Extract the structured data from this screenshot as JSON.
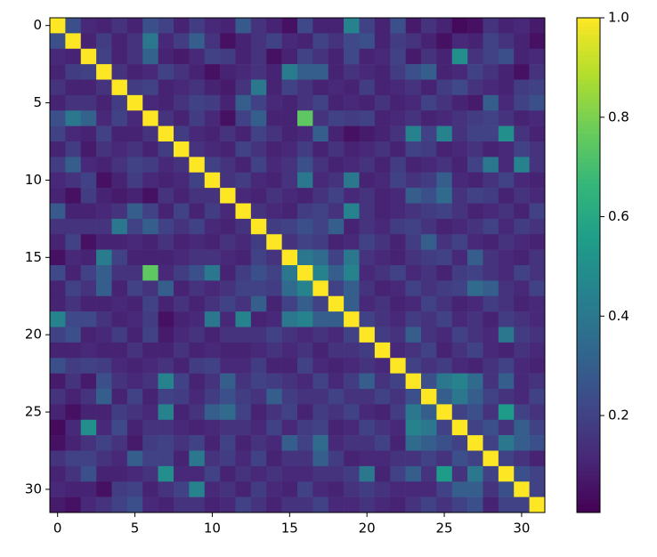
{
  "chart_data": {
    "type": "heatmap",
    "cmap": "viridis",
    "xlim": [
      -0.5,
      31.5
    ],
    "ylim": [
      31.5,
      -0.5
    ],
    "xticks": [
      0,
      5,
      10,
      15,
      20,
      25,
      30
    ],
    "yticks": [
      0,
      5,
      10,
      15,
      20,
      25,
      30
    ],
    "clim": [
      0.005,
      1
    ],
    "cticks": [
      0.2,
      0.4,
      0.6,
      0.8,
      {
        "value": 1,
        "label": "1.0"
      }
    ],
    "values": [
      [
        1,
        0.25,
        0.12,
        0.1,
        0.15,
        0.1,
        0.25,
        0.2,
        0.1,
        0.18,
        0.12,
        0.1,
        0.28,
        0.15,
        0.1,
        0.05,
        0.22,
        0.1,
        0.1,
        0.45,
        0.2,
        0.1,
        0.25,
        0.08,
        0.15,
        0.1,
        0.03,
        0.05,
        0.15,
        0.1,
        0.12,
        0.08
      ],
      [
        0.25,
        1,
        0.1,
        0.18,
        0.1,
        0.15,
        0.4,
        0.12,
        0.18,
        0.3,
        0.15,
        0.05,
        0.1,
        0.15,
        0.2,
        0.12,
        0.1,
        0.2,
        0.15,
        0.22,
        0.25,
        0.1,
        0.18,
        0.15,
        0.1,
        0.05,
        0.12,
        0.1,
        0.2,
        0.15,
        0.1,
        0.05
      ],
      [
        0.12,
        0.1,
        1,
        0.2,
        0.1,
        0.15,
        0.32,
        0.1,
        0.08,
        0.12,
        0.2,
        0.18,
        0.1,
        0.15,
        0.05,
        0.1,
        0.2,
        0.15,
        0.1,
        0.22,
        0.1,
        0.12,
        0.2,
        0.08,
        0.15,
        0.1,
        0.5,
        0.15,
        0.2,
        0.25,
        0.1,
        0.12
      ],
      [
        0.1,
        0.18,
        0.2,
        1,
        0.15,
        0.1,
        0.12,
        0.2,
        0.15,
        0.1,
        0.05,
        0.1,
        0.12,
        0.15,
        0.1,
        0.42,
        0.3,
        0.3,
        0.1,
        0.15,
        0.12,
        0.1,
        0.18,
        0.25,
        0.3,
        0.1,
        0.12,
        0.2,
        0.15,
        0.1,
        0.05,
        0.15
      ],
      [
        0.15,
        0.1,
        0.1,
        0.15,
        1,
        0.18,
        0.2,
        0.1,
        0.12,
        0.15,
        0.1,
        0.08,
        0.15,
        0.4,
        0.1,
        0.2,
        0.15,
        0.1,
        0.12,
        0.1,
        0.18,
        0.1,
        0.12,
        0.15,
        0.1,
        0.18,
        0.22,
        0.15,
        0.12,
        0.1,
        0.18,
        0.2
      ],
      [
        0.1,
        0.15,
        0.15,
        0.1,
        0.18,
        1,
        0.12,
        0.1,
        0.15,
        0.2,
        0.18,
        0.1,
        0.3,
        0.2,
        0.12,
        0.1,
        0.15,
        0.2,
        0.1,
        0.12,
        0.1,
        0.15,
        0.1,
        0.12,
        0.2,
        0.15,
        0.1,
        0.08,
        0.3,
        0.12,
        0.2,
        0.25
      ],
      [
        0.25,
        0.4,
        0.32,
        0.12,
        0.2,
        0.12,
        1,
        0.15,
        0.1,
        0.18,
        0.12,
        0.05,
        0.2,
        0.3,
        0.1,
        0.1,
        0.75,
        0.15,
        0.2,
        0.18,
        0.2,
        0.1,
        0.12,
        0.15,
        0.1,
        0.12,
        0.15,
        0.18,
        0.2,
        0.15,
        0.1,
        0.12
      ],
      [
        0.2,
        0.12,
        0.1,
        0.2,
        0.1,
        0.1,
        0.15,
        1,
        0.18,
        0.12,
        0.1,
        0.15,
        0.1,
        0.2,
        0.15,
        0.1,
        0.12,
        0.3,
        0.1,
        0.05,
        0.08,
        0.1,
        0.15,
        0.45,
        0.2,
        0.45,
        0.15,
        0.2,
        0.2,
        0.5,
        0.15,
        0.1
      ],
      [
        0.1,
        0.18,
        0.08,
        0.15,
        0.12,
        0.15,
        0.1,
        0.18,
        1,
        0.15,
        0.12,
        0.1,
        0.2,
        0.15,
        0.1,
        0.12,
        0.18,
        0.1,
        0.15,
        0.1,
        0.12,
        0.15,
        0.1,
        0.2,
        0.18,
        0.1,
        0.12,
        0.15,
        0.1,
        0.12,
        0.2,
        0.15
      ],
      [
        0.18,
        0.3,
        0.12,
        0.1,
        0.15,
        0.2,
        0.18,
        0.12,
        0.15,
        1,
        0.2,
        0.15,
        0.1,
        0.2,
        0.12,
        0.15,
        0.25,
        0.15,
        0.1,
        0.12,
        0.15,
        0.1,
        0.18,
        0.1,
        0.12,
        0.15,
        0.1,
        0.2,
        0.4,
        0.12,
        0.45,
        0.15
      ],
      [
        0.12,
        0.15,
        0.2,
        0.05,
        0.1,
        0.18,
        0.12,
        0.1,
        0.12,
        0.2,
        1,
        0.15,
        0.18,
        0.12,
        0.1,
        0.15,
        0.4,
        0.12,
        0.15,
        0.4,
        0.1,
        0.12,
        0.2,
        0.15,
        0.18,
        0.3,
        0.12,
        0.1,
        0.15,
        0.2,
        0.12,
        0.1
      ],
      [
        0.1,
        0.05,
        0.18,
        0.1,
        0.08,
        0.1,
        0.05,
        0.15,
        0.1,
        0.15,
        0.15,
        1,
        0.12,
        0.1,
        0.15,
        0.12,
        0.1,
        0.15,
        0.2,
        0.12,
        0.15,
        0.1,
        0.12,
        0.3,
        0.25,
        0.35,
        0.15,
        0.2,
        0.18,
        0.1,
        0.15,
        0.12
      ],
      [
        0.28,
        0.1,
        0.1,
        0.12,
        0.15,
        0.3,
        0.2,
        0.1,
        0.2,
        0.1,
        0.18,
        0.12,
        1,
        0.15,
        0.12,
        0.1,
        0.18,
        0.2,
        0.15,
        0.45,
        0.15,
        0.1,
        0.12,
        0.15,
        0.18,
        0.2,
        0.15,
        0.1,
        0.12,
        0.15,
        0.1,
        0.2
      ],
      [
        0.15,
        0.15,
        0.15,
        0.15,
        0.4,
        0.2,
        0.3,
        0.2,
        0.15,
        0.2,
        0.12,
        0.1,
        0.15,
        1,
        0.18,
        0.2,
        0.25,
        0.2,
        0.3,
        0.1,
        0.15,
        0.12,
        0.18,
        0.2,
        0.15,
        0.1,
        0.12,
        0.15,
        0.2,
        0.12,
        0.18,
        0.15
      ],
      [
        0.1,
        0.2,
        0.05,
        0.1,
        0.1,
        0.12,
        0.1,
        0.15,
        0.1,
        0.12,
        0.1,
        0.15,
        0.12,
        0.18,
        1,
        0.15,
        0.2,
        0.18,
        0.1,
        0.12,
        0.2,
        0.15,
        0.1,
        0.18,
        0.3,
        0.15,
        0.2,
        0.12,
        0.1,
        0.15,
        0.12,
        0.1
      ],
      [
        0.05,
        0.12,
        0.1,
        0.42,
        0.2,
        0.1,
        0.1,
        0.1,
        0.12,
        0.15,
        0.15,
        0.12,
        0.1,
        0.2,
        0.15,
        1,
        0.4,
        0.35,
        0.2,
        0.4,
        0.15,
        0.12,
        0.1,
        0.15,
        0.18,
        0.2,
        0.12,
        0.3,
        0.15,
        0.12,
        0.1,
        0.15
      ],
      [
        0.22,
        0.1,
        0.2,
        0.3,
        0.15,
        0.15,
        0.75,
        0.12,
        0.18,
        0.25,
        0.4,
        0.1,
        0.18,
        0.25,
        0.2,
        0.4,
        1,
        0.45,
        0.3,
        0.45,
        0.12,
        0.15,
        0.2,
        0.12,
        0.15,
        0.1,
        0.18,
        0.2,
        0.15,
        0.12,
        0.2,
        0.15
      ],
      [
        0.1,
        0.2,
        0.15,
        0.3,
        0.1,
        0.2,
        0.15,
        0.3,
        0.1,
        0.15,
        0.12,
        0.15,
        0.2,
        0.2,
        0.18,
        0.35,
        0.45,
        1,
        0.2,
        0.3,
        0.15,
        0.1,
        0.12,
        0.2,
        0.15,
        0.18,
        0.2,
        0.35,
        0.3,
        0.15,
        0.12,
        0.2
      ],
      [
        0.1,
        0.15,
        0.1,
        0.1,
        0.12,
        0.1,
        0.2,
        0.1,
        0.15,
        0.1,
        0.15,
        0.2,
        0.15,
        0.3,
        0.1,
        0.2,
        0.3,
        0.2,
        1,
        0.3,
        0.12,
        0.15,
        0.1,
        0.12,
        0.2,
        0.15,
        0.1,
        0.12,
        0.18,
        0.15,
        0.1,
        0.12
      ],
      [
        0.45,
        0.22,
        0.22,
        0.15,
        0.1,
        0.12,
        0.18,
        0.05,
        0.1,
        0.12,
        0.4,
        0.12,
        0.45,
        0.1,
        0.12,
        0.4,
        0.45,
        0.3,
        0.3,
        1,
        0.2,
        0.15,
        0.12,
        0.18,
        0.15,
        0.2,
        0.12,
        0.15,
        0.1,
        0.18,
        0.15,
        0.12
      ],
      [
        0.2,
        0.25,
        0.1,
        0.12,
        0.18,
        0.1,
        0.2,
        0.08,
        0.12,
        0.15,
        0.1,
        0.15,
        0.15,
        0.15,
        0.2,
        0.15,
        0.12,
        0.15,
        0.12,
        0.2,
        1,
        0.18,
        0.15,
        0.3,
        0.15,
        0.12,
        0.2,
        0.15,
        0.12,
        0.4,
        0.18,
        0.15
      ],
      [
        0.1,
        0.1,
        0.12,
        0.1,
        0.1,
        0.15,
        0.1,
        0.1,
        0.15,
        0.1,
        0.12,
        0.1,
        0.1,
        0.12,
        0.15,
        0.12,
        0.15,
        0.1,
        0.15,
        0.15,
        0.18,
        1,
        0.12,
        0.15,
        0.2,
        0.1,
        0.15,
        0.2,
        0.12,
        0.1,
        0.15,
        0.12
      ],
      [
        0.25,
        0.18,
        0.2,
        0.18,
        0.12,
        0.1,
        0.12,
        0.15,
        0.1,
        0.18,
        0.2,
        0.12,
        0.12,
        0.18,
        0.1,
        0.1,
        0.2,
        0.12,
        0.1,
        0.12,
        0.15,
        0.12,
        1,
        0.2,
        0.15,
        0.18,
        0.12,
        0.1,
        0.15,
        0.2,
        0.12,
        0.1
      ],
      [
        0.08,
        0.15,
        0.08,
        0.25,
        0.15,
        0.12,
        0.15,
        0.45,
        0.2,
        0.1,
        0.15,
        0.3,
        0.15,
        0.2,
        0.18,
        0.15,
        0.12,
        0.2,
        0.12,
        0.18,
        0.3,
        0.15,
        0.2,
        1,
        0.25,
        0.4,
        0.45,
        0.35,
        0.15,
        0.3,
        0.12,
        0.15
      ],
      [
        0.15,
        0.1,
        0.15,
        0.3,
        0.1,
        0.2,
        0.1,
        0.2,
        0.18,
        0.12,
        0.18,
        0.25,
        0.18,
        0.15,
        0.3,
        0.18,
        0.15,
        0.15,
        0.2,
        0.15,
        0.15,
        0.2,
        0.15,
        0.25,
        1,
        0.3,
        0.4,
        0.3,
        0.2,
        0.15,
        0.12,
        0.2
      ],
      [
        0.1,
        0.05,
        0.1,
        0.1,
        0.18,
        0.15,
        0.12,
        0.45,
        0.1,
        0.15,
        0.3,
        0.35,
        0.2,
        0.1,
        0.15,
        0.2,
        0.1,
        0.18,
        0.15,
        0.2,
        0.12,
        0.1,
        0.18,
        0.4,
        0.3,
        1,
        0.2,
        0.25,
        0.15,
        0.55,
        0.2,
        0.15
      ],
      [
        0.03,
        0.12,
        0.5,
        0.12,
        0.22,
        0.1,
        0.15,
        0.15,
        0.12,
        0.1,
        0.12,
        0.15,
        0.15,
        0.12,
        0.2,
        0.12,
        0.18,
        0.2,
        0.1,
        0.12,
        0.2,
        0.15,
        0.12,
        0.45,
        0.4,
        0.2,
        1,
        0.2,
        0.25,
        0.15,
        0.3,
        0.2
      ],
      [
        0.05,
        0.1,
        0.15,
        0.2,
        0.15,
        0.08,
        0.18,
        0.2,
        0.15,
        0.2,
        0.1,
        0.2,
        0.1,
        0.15,
        0.12,
        0.3,
        0.2,
        0.35,
        0.12,
        0.15,
        0.15,
        0.2,
        0.1,
        0.35,
        0.3,
        0.25,
        0.2,
        1,
        0.2,
        0.4,
        0.3,
        0.25
      ],
      [
        0.15,
        0.2,
        0.2,
        0.15,
        0.12,
        0.3,
        0.2,
        0.2,
        0.1,
        0.4,
        0.15,
        0.18,
        0.12,
        0.2,
        0.1,
        0.15,
        0.15,
        0.3,
        0.18,
        0.1,
        0.12,
        0.12,
        0.15,
        0.15,
        0.2,
        0.15,
        0.25,
        0.2,
        1,
        0.2,
        0.15,
        0.1
      ],
      [
        0.1,
        0.15,
        0.25,
        0.1,
        0.1,
        0.12,
        0.15,
        0.5,
        0.12,
        0.12,
        0.2,
        0.1,
        0.15,
        0.12,
        0.15,
        0.12,
        0.12,
        0.15,
        0.15,
        0.18,
        0.4,
        0.1,
        0.2,
        0.3,
        0.15,
        0.55,
        0.15,
        0.4,
        0.2,
        1,
        0.25,
        0.2
      ],
      [
        0.12,
        0.1,
        0.1,
        0.05,
        0.18,
        0.2,
        0.1,
        0.15,
        0.2,
        0.45,
        0.12,
        0.15,
        0.1,
        0.18,
        0.12,
        0.1,
        0.2,
        0.12,
        0.1,
        0.15,
        0.18,
        0.15,
        0.12,
        0.12,
        0.12,
        0.2,
        0.3,
        0.3,
        0.15,
        0.25,
        1,
        0.2
      ],
      [
        0.08,
        0.05,
        0.12,
        0.15,
        0.2,
        0.25,
        0.12,
        0.1,
        0.15,
        0.15,
        0.1,
        0.12,
        0.2,
        0.15,
        0.1,
        0.15,
        0.15,
        0.2,
        0.12,
        0.12,
        0.15,
        0.12,
        0.1,
        0.15,
        0.2,
        0.15,
        0.2,
        0.25,
        0.1,
        0.2,
        0.2,
        1
      ]
    ]
  }
}
